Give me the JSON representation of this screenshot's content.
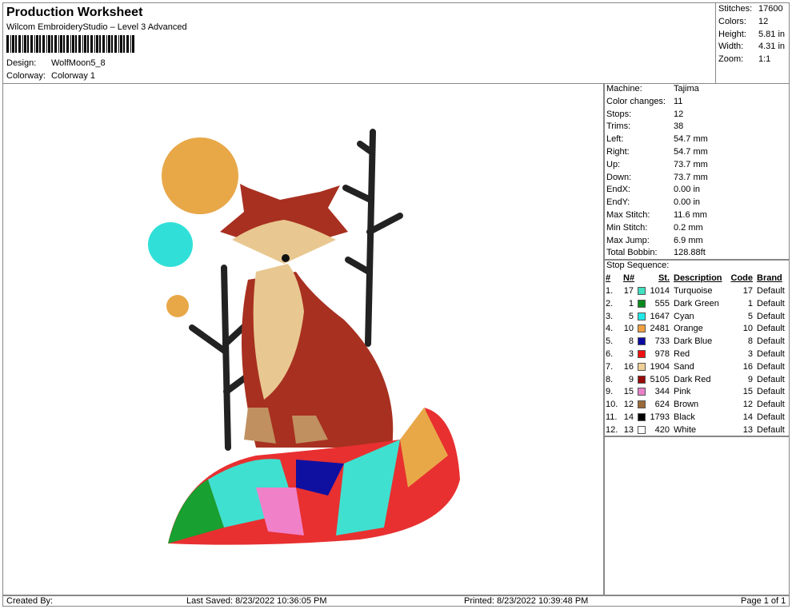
{
  "header": {
    "title": "Production Worksheet",
    "subtitle": "Wilcom EmbroideryStudio – Level 3 Advanced",
    "fields": [
      {
        "label": "Design:",
        "value": "WolfMoon5_8"
      },
      {
        "label": "Colorway:",
        "value": "Colorway 1"
      }
    ]
  },
  "summary": [
    {
      "label": "Stitches:",
      "value": "17600"
    },
    {
      "label": "Colors:",
      "value": "12"
    },
    {
      "label": "Height:",
      "value": "5.81 in"
    },
    {
      "label": "Width:",
      "value": "4.31 in"
    },
    {
      "label": "Zoom:",
      "value": "1:1"
    }
  ],
  "machine_info": [
    {
      "label": "Machine:",
      "value": "Tajima"
    },
    {
      "label": "Color changes:",
      "value": "11"
    },
    {
      "label": "Stops:",
      "value": "12"
    },
    {
      "label": "Trims:",
      "value": "38"
    },
    {
      "label": "Left:",
      "value": "54.7 mm"
    },
    {
      "label": "Right:",
      "value": "54.7 mm"
    },
    {
      "label": "Up:",
      "value": "73.7 mm"
    },
    {
      "label": "Down:",
      "value": "73.7 mm"
    },
    {
      "label": "EndX:",
      "value": "0.00 in"
    },
    {
      "label": "EndY:",
      "value": "0.00 in"
    },
    {
      "label": "Max Stitch:",
      "value": "11.6 mm"
    },
    {
      "label": "Min Stitch:",
      "value": "0.2 mm"
    },
    {
      "label": "Max Jump:",
      "value": "6.9 mm"
    },
    {
      "label": "Total Bobbin:",
      "value": "128.88ft"
    }
  ],
  "stop_sequence": {
    "title": "Stop Sequence:",
    "columns": [
      "#",
      "N#",
      "St.",
      "Description",
      "Code",
      "Brand"
    ],
    "rows": [
      {
        "num": "1.",
        "n": "17",
        "color": "#40e0c0",
        "st": "1014",
        "description": "Turquoise",
        "code": "17",
        "brand": "Default"
      },
      {
        "num": "2.",
        "n": "1",
        "color": "#0a8a1e",
        "st": "555",
        "description": "Dark Green",
        "code": "1",
        "brand": "Default"
      },
      {
        "num": "3.",
        "n": "5",
        "color": "#20e8e8",
        "st": "1647",
        "description": "Cyan",
        "code": "5",
        "brand": "Default"
      },
      {
        "num": "4.",
        "n": "10",
        "color": "#f0a040",
        "st": "2481",
        "description": "Orange",
        "code": "10",
        "brand": "Default"
      },
      {
        "num": "5.",
        "n": "8",
        "color": "#0a0aa0",
        "st": "733",
        "description": "Dark Blue",
        "code": "8",
        "brand": "Default"
      },
      {
        "num": "6.",
        "n": "3",
        "color": "#f01010",
        "st": "978",
        "description": "Red",
        "code": "3",
        "brand": "Default"
      },
      {
        "num": "7.",
        "n": "16",
        "color": "#f0d098",
        "st": "1904",
        "description": "Sand",
        "code": "16",
        "brand": "Default"
      },
      {
        "num": "8.",
        "n": "9",
        "color": "#980a0a",
        "st": "5105",
        "description": "Dark Red",
        "code": "9",
        "brand": "Default"
      },
      {
        "num": "9.",
        "n": "15",
        "color": "#e880c8",
        "st": "344",
        "description": "Pink",
        "code": "15",
        "brand": "Default"
      },
      {
        "num": "10.",
        "n": "12",
        "color": "#9a6a3a",
        "st": "624",
        "description": "Brown",
        "code": "12",
        "brand": "Default"
      },
      {
        "num": "11.",
        "n": "14",
        "color": "#000000",
        "st": "1793",
        "description": "Black",
        "code": "14",
        "brand": "Default"
      },
      {
        "num": "12.",
        "n": "13",
        "color": "#ffffff",
        "st": "420",
        "description": "White",
        "code": "13",
        "brand": "Default"
      }
    ]
  },
  "footer": {
    "created_by": "Created By:",
    "last_saved": "Last Saved: 8/23/2022 10:36:05 PM",
    "printed": "Printed: 8/23/2022 10:39:48 PM",
    "page": "Page 1 of 1"
  }
}
